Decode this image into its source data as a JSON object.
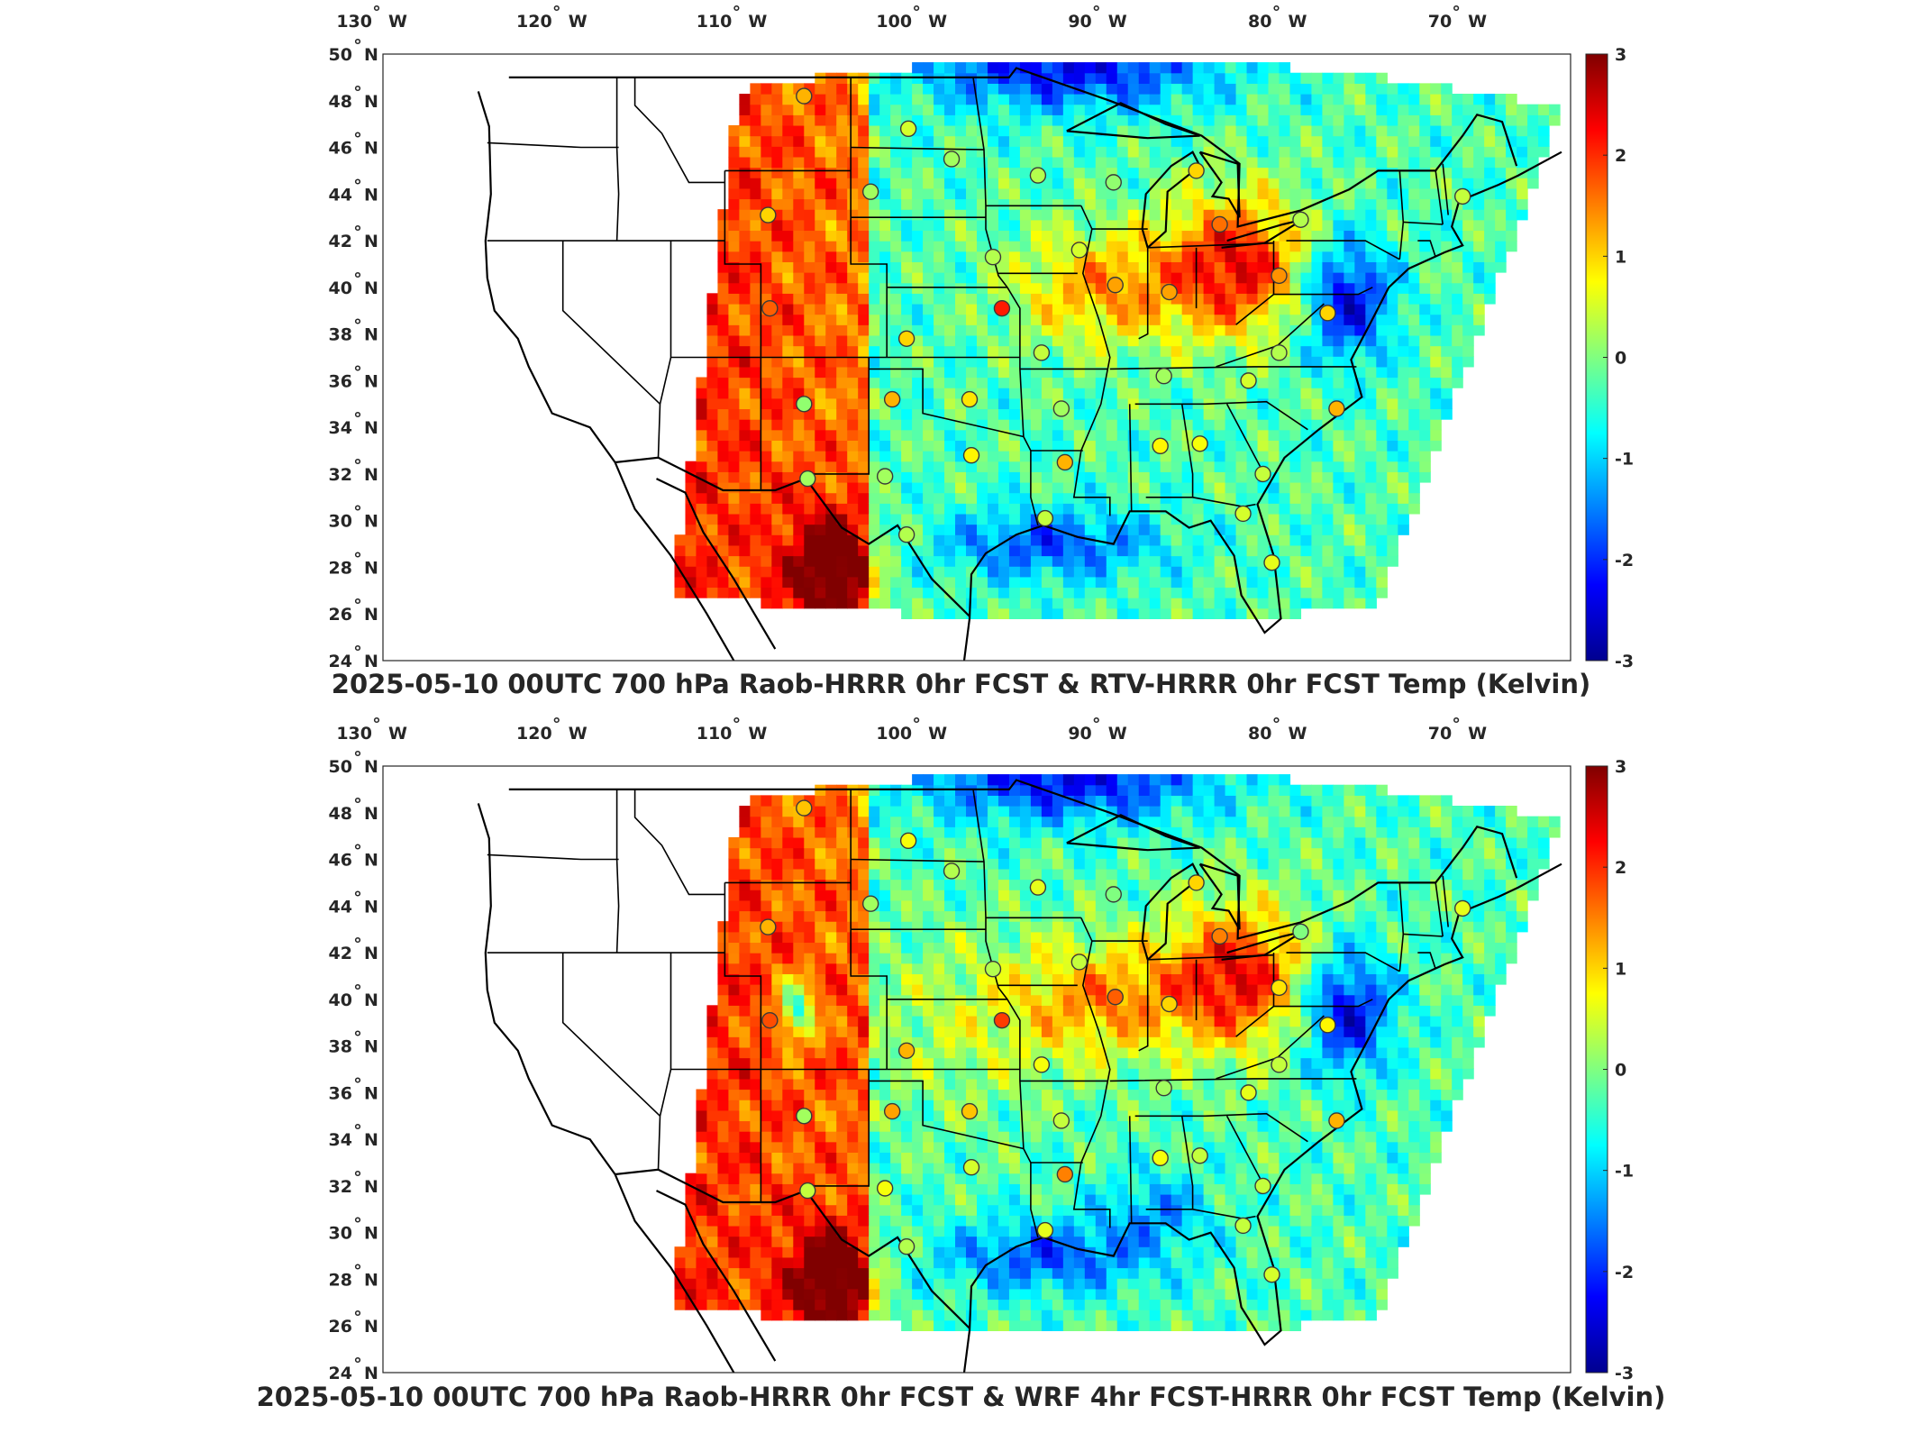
{
  "panels": [
    {
      "title": "2025-05-10 00UTC 700 hPa Raob-HRRR 0hr FCST & RTV-HRRR 0hr FCST Temp (Kelvin)",
      "colorbar": {
        "min": -3,
        "max": 3,
        "ticks": [
          "3",
          "2",
          "1",
          "0",
          "-1",
          "-2",
          "-3"
        ]
      },
      "lon_ticks": [
        "130",
        "120",
        "110",
        "100",
        "90",
        "80",
        "70"
      ],
      "lon_suffix": "W",
      "lat_ticks": [
        "50",
        "48",
        "46",
        "44",
        "42",
        "40",
        "38",
        "36",
        "34",
        "32",
        "30",
        "28",
        "26",
        "24"
      ],
      "lat_suffix": "N"
    },
    {
      "title": "2025-05-10 00UTC 700 hPa Raob-HRRR 0hr FCST & WRF 4hr FCST-HRRR 0hr FCST Temp (Kelvin)",
      "colorbar": {
        "min": -3,
        "max": 3,
        "ticks": [
          "3",
          "2",
          "1",
          "0",
          "-1",
          "-2",
          "-3"
        ]
      },
      "lon_ticks": [
        "130",
        "120",
        "110",
        "100",
        "90",
        "80",
        "70"
      ],
      "lon_suffix": "W",
      "lat_ticks": [
        "50",
        "48",
        "46",
        "44",
        "42",
        "40",
        "38",
        "36",
        "34",
        "32",
        "30",
        "28",
        "26",
        "24"
      ],
      "lat_suffix": "N"
    }
  ],
  "colormap": [
    "#00008f",
    "#0000ff",
    "#0080ff",
    "#00ffff",
    "#80ff80",
    "#ffff00",
    "#ff8000",
    "#ff0000",
    "#800000"
  ],
  "stations": [
    {
      "lon": -106.6,
      "lat": 48.2,
      "v1": 1.2,
      "v2": 1.1
    },
    {
      "lon": -100.8,
      "lat": 46.8,
      "v1": 0.5,
      "v2": 0.7
    },
    {
      "lon": -98.4,
      "lat": 45.5,
      "v1": 0.2,
      "v2": 0.3
    },
    {
      "lon": -93.6,
      "lat": 44.8,
      "v1": 0.3,
      "v2": 0.6
    },
    {
      "lon": -89.4,
      "lat": 44.5,
      "v1": 0.1,
      "v2": 0.0
    },
    {
      "lon": -84.8,
      "lat": 45.0,
      "v1": 1.0,
      "v2": 1.0
    },
    {
      "lon": -102.9,
      "lat": 44.1,
      "v1": 0.2,
      "v2": 0.2
    },
    {
      "lon": -108.6,
      "lat": 43.1,
      "v1": 1.0,
      "v2": 1.2
    },
    {
      "lon": -83.5,
      "lat": 42.7,
      "v1": 1.6,
      "v2": 1.5
    },
    {
      "lon": -79.0,
      "lat": 42.9,
      "v1": 0.3,
      "v2": 0.0
    },
    {
      "lon": -96.1,
      "lat": 41.3,
      "v1": 0.3,
      "v2": 0.3
    },
    {
      "lon": -89.3,
      "lat": 40.1,
      "v1": 1.3,
      "v2": 1.7
    },
    {
      "lon": -91.3,
      "lat": 41.6,
      "v1": 0.5,
      "v2": 0.4
    },
    {
      "lon": -80.2,
      "lat": 40.5,
      "v1": 1.4,
      "v2": 0.9
    },
    {
      "lon": -95.6,
      "lat": 39.1,
      "v1": 2.1,
      "v2": 1.9
    },
    {
      "lon": -86.3,
      "lat": 39.8,
      "v1": 1.3,
      "v2": 1.0
    },
    {
      "lon": -77.5,
      "lat": 38.9,
      "v1": 1.0,
      "v2": 0.8
    },
    {
      "lon": -100.9,
      "lat": 37.8,
      "v1": 1.0,
      "v2": 1.2
    },
    {
      "lon": -108.5,
      "lat": 39.1,
      "v1": 1.7,
      "v2": 1.8
    },
    {
      "lon": -93.4,
      "lat": 37.2,
      "v1": 0.4,
      "v2": 0.7
    },
    {
      "lon": -86.6,
      "lat": 36.2,
      "v1": 0.2,
      "v2": 0.2
    },
    {
      "lon": -80.2,
      "lat": 37.2,
      "v1": 0.3,
      "v2": 0.4
    },
    {
      "lon": -81.9,
      "lat": 36.0,
      "v1": 0.5,
      "v2": 0.6
    },
    {
      "lon": -77.0,
      "lat": 34.8,
      "v1": 1.2,
      "v2": 1.2
    },
    {
      "lon": -101.7,
      "lat": 35.2,
      "v1": 1.2,
      "v2": 1.3
    },
    {
      "lon": -97.4,
      "lat": 35.2,
      "v1": 0.9,
      "v2": 1.1
    },
    {
      "lon": -92.3,
      "lat": 34.8,
      "v1": 0.2,
      "v2": 0.4
    },
    {
      "lon": -106.6,
      "lat": 35.0,
      "v1": 0.1,
      "v2": 0.2
    },
    {
      "lon": -97.3,
      "lat": 32.8,
      "v1": 0.8,
      "v2": 0.5
    },
    {
      "lon": -92.1,
      "lat": 32.5,
      "v1": 1.2,
      "v2": 1.5
    },
    {
      "lon": -86.8,
      "lat": 33.2,
      "v1": 0.8,
      "v2": 0.7
    },
    {
      "lon": -84.6,
      "lat": 33.3,
      "v1": 0.7,
      "v2": 0.4
    },
    {
      "lon": -81.1,
      "lat": 32.0,
      "v1": 0.4,
      "v2": 0.4
    },
    {
      "lon": -102.1,
      "lat": 31.9,
      "v1": 0.2,
      "v2": 0.7
    },
    {
      "lon": -106.4,
      "lat": 31.8,
      "v1": 0.2,
      "v2": 0.4
    },
    {
      "lon": -82.2,
      "lat": 30.3,
      "v1": 0.5,
      "v2": 0.4
    },
    {
      "lon": -93.2,
      "lat": 30.1,
      "v1": 0.4,
      "v2": 0.6
    },
    {
      "lon": -100.9,
      "lat": 29.4,
      "v1": 0.3,
      "v2": 0.3
    },
    {
      "lon": -80.6,
      "lat": 28.2,
      "v1": 0.6,
      "v2": 0.5
    },
    {
      "lon": -70.0,
      "lat": 43.9,
      "v1": 0.4,
      "v2": 0.6
    }
  ]
}
